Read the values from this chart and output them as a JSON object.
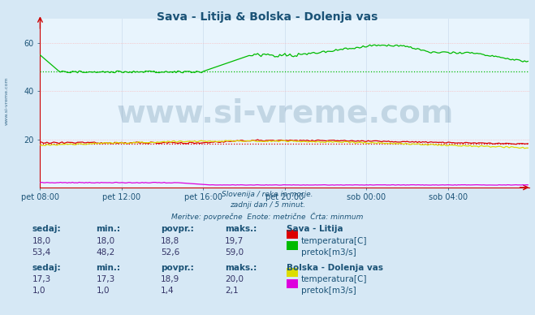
{
  "title": "Sava - Litija & Bolska - Dolenja vas",
  "title_color": "#1a5276",
  "title_fontsize": 10,
  "bg_color": "#d6e8f5",
  "plot_bg_color": "#e8f4fd",
  "grid_color_h": "#ffaaaa",
  "grid_color_v": "#ccddee",
  "xlim": [
    0,
    288
  ],
  "ylim": [
    0,
    70
  ],
  "yticks": [
    20,
    40,
    60
  ],
  "xtick_labels": [
    "pet 08:00",
    "pet 12:00",
    "pet 16:00",
    "pet 20:00",
    "sob 00:00",
    "sob 04:00"
  ],
  "xtick_positions": [
    0,
    48,
    96,
    144,
    192,
    240
  ],
  "subtitle_lines": [
    "Slovenija / reke in morje.",
    "zadnji dan / 5 minut.",
    "Meritve: povprečne  Enote: metrične  Črta: minmum"
  ],
  "watermark": "www.si-vreme.com",
  "watermark_color": "#1a5276",
  "watermark_alpha": 0.18,
  "watermark_fontsize": 28,
  "axis_color": "#cc0000",
  "sidebar_text": "www.si-vreme.com",
  "sidebar_color": "#1a5276",
  "legend_sava": "Sava - Litija",
  "legend_bolska": "Bolska - Dolenja vas",
  "sava_temp_color": "#dd0000",
  "sava_flow_color": "#00bb00",
  "bolska_temp_color": "#dddd00",
  "bolska_flow_color": "#dd00dd",
  "table_header_color": "#1a5276",
  "table_value_color": "#333366",
  "sava_temp_now": 18.0,
  "sava_temp_min": 18.0,
  "sava_temp_avg": 18.8,
  "sava_temp_max": 19.7,
  "sava_flow_now": 53.4,
  "sava_flow_min": 48.2,
  "sava_flow_avg": 52.6,
  "sava_flow_max": 59.0,
  "bolska_temp_now": 17.3,
  "bolska_temp_min": 17.3,
  "bolska_temp_avg": 18.9,
  "bolska_temp_max": 20.0,
  "bolska_flow_now": 1.0,
  "bolska_flow_min": 1.0,
  "bolska_flow_avg": 1.4,
  "bolska_flow_max": 2.1
}
